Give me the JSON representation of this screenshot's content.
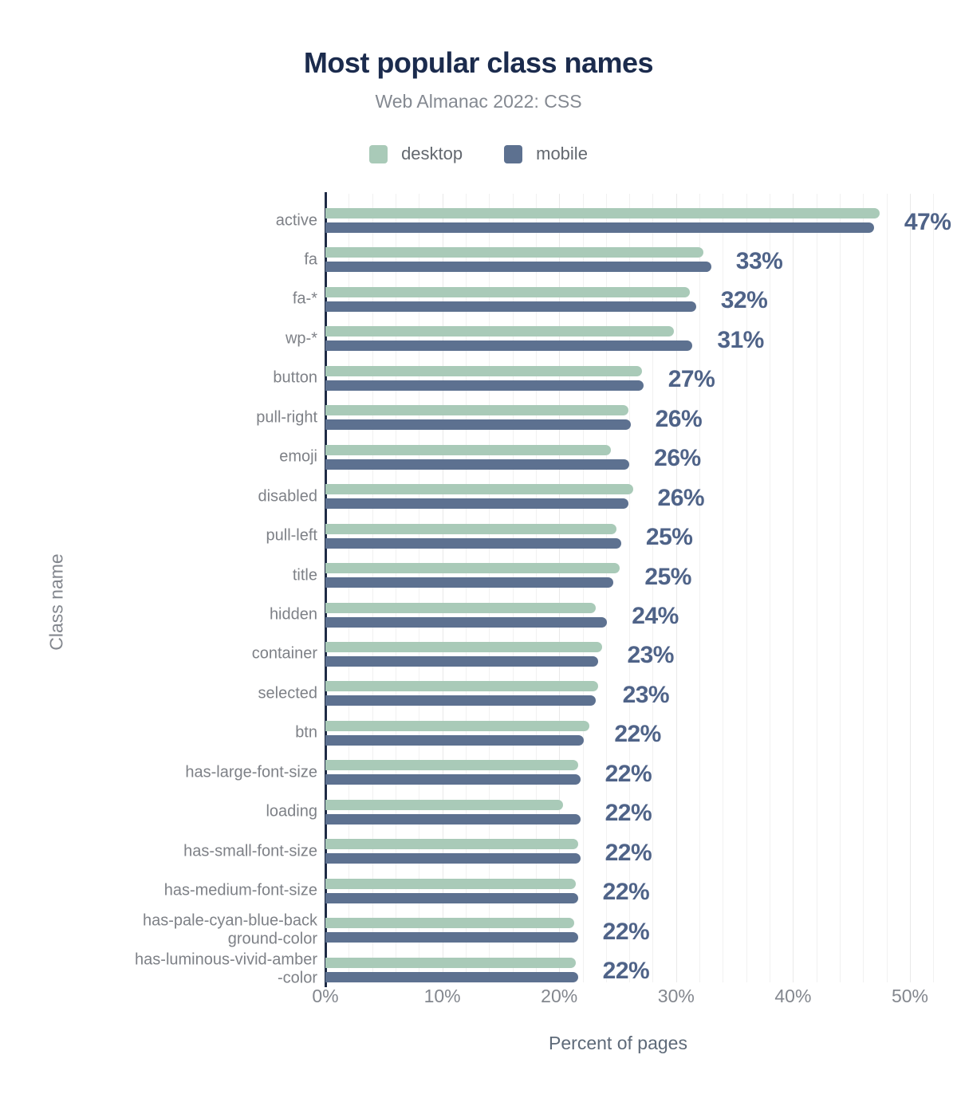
{
  "chart_data": {
    "type": "bar",
    "orientation": "horizontal",
    "title": "Most popular class names",
    "subtitle": "Web Almanac 2022: CSS",
    "xlabel": "Percent of pages",
    "ylabel": "Class name",
    "legend": [
      "desktop",
      "mobile"
    ],
    "legend_position": "top-center",
    "grid": "vertical, minor every 2%, major every 10%",
    "xlim": [
      0,
      52
    ],
    "x_ticks": [
      "0%",
      "10%",
      "20%",
      "30%",
      "40%",
      "50%"
    ],
    "x_tick_values": [
      0,
      10,
      20,
      30,
      40,
      50
    ],
    "colors": {
      "desktop": "#a9cab8",
      "mobile": "#5d7190",
      "value_label": "#4f6388",
      "title": "#1b2b4d",
      "axis": "#1e2b45"
    },
    "categories": [
      "active",
      "fa",
      "fa-*",
      "wp-*",
      "button",
      "pull-right",
      "emoji",
      "disabled",
      "pull-left",
      "title",
      "hidden",
      "container",
      "selected",
      "btn",
      "has-large-font-size",
      "loading",
      "has-small-font-size",
      "has-medium-font-size",
      "has-pale-cyan-blue-back\nground-color",
      "has-luminous-vivid-amber\n-color"
    ],
    "series": [
      {
        "name": "desktop",
        "values": [
          47.4,
          32.3,
          31.2,
          29.8,
          27.1,
          25.9,
          24.4,
          26.3,
          24.9,
          25.2,
          23.1,
          23.7,
          23.3,
          22.6,
          21.6,
          20.3,
          21.6,
          21.4,
          21.3,
          21.4
        ]
      },
      {
        "name": "mobile",
        "values": [
          46.9,
          33.0,
          31.7,
          31.4,
          27.2,
          26.1,
          26.0,
          25.9,
          25.3,
          24.6,
          24.1,
          23.3,
          23.1,
          22.1,
          21.8,
          21.8,
          21.8,
          21.6,
          21.6,
          21.6
        ]
      }
    ],
    "value_labels": [
      "47%",
      "33%",
      "32%",
      "31%",
      "27%",
      "26%",
      "26%",
      "26%",
      "25%",
      "25%",
      "24%",
      "23%",
      "23%",
      "22%",
      "22%",
      "22%",
      "22%",
      "22%",
      "22%",
      "22%"
    ]
  }
}
